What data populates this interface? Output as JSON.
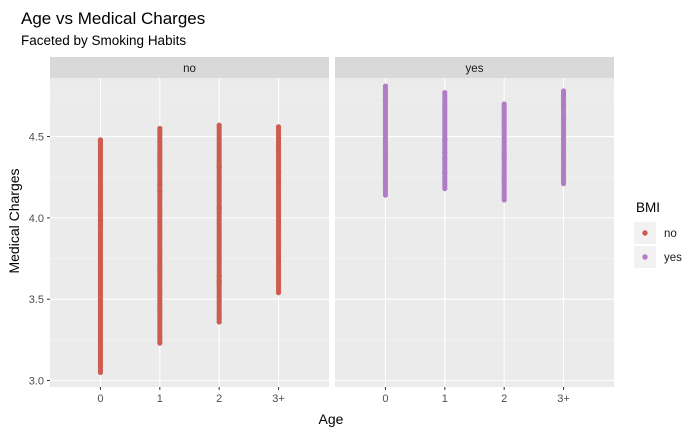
{
  "chart_data": {
    "type": "scatter",
    "title": "Age vs Medical Charges",
    "subtitle": "Faceted by Smoking Habits",
    "xlabel": "Age",
    "ylabel": "Medical Charges",
    "categories": [
      "0",
      "1",
      "2",
      "3+"
    ],
    "ylim": [
      2.96,
      4.86
    ],
    "yticks": [
      3.0,
      3.5,
      4.0,
      4.5
    ],
    "ytick_labels": [
      "3.0",
      "3.5",
      "4.0",
      "4.5"
    ],
    "grid": true,
    "legend": {
      "title": "BMI",
      "position": "right",
      "entries": [
        {
          "label": "no",
          "color": "#CD5C50"
        },
        {
          "label": "yes",
          "color": "#B07CC6"
        }
      ]
    },
    "facets": [
      {
        "label": "no",
        "color": "#CD5C50",
        "columns": [
          {
            "x": "0",
            "y_min": 3.05,
            "y_max": 4.48
          },
          {
            "x": "1",
            "y_min": 3.23,
            "y_max": 4.55
          },
          {
            "x": "2",
            "y_min": 3.36,
            "y_max": 4.57
          },
          {
            "x": "3+",
            "y_min": 3.54,
            "y_max": 4.56
          }
        ]
      },
      {
        "label": "yes",
        "color": "#B07CC6",
        "columns": [
          {
            "x": "0",
            "y_min": 4.14,
            "y_max": 4.81
          },
          {
            "x": "1",
            "y_min": 4.18,
            "y_max": 4.77
          },
          {
            "x": "2",
            "y_min": 4.11,
            "y_max": 4.7
          },
          {
            "x": "3+",
            "y_min": 4.21,
            "y_max": 4.78
          }
        ]
      }
    ]
  }
}
